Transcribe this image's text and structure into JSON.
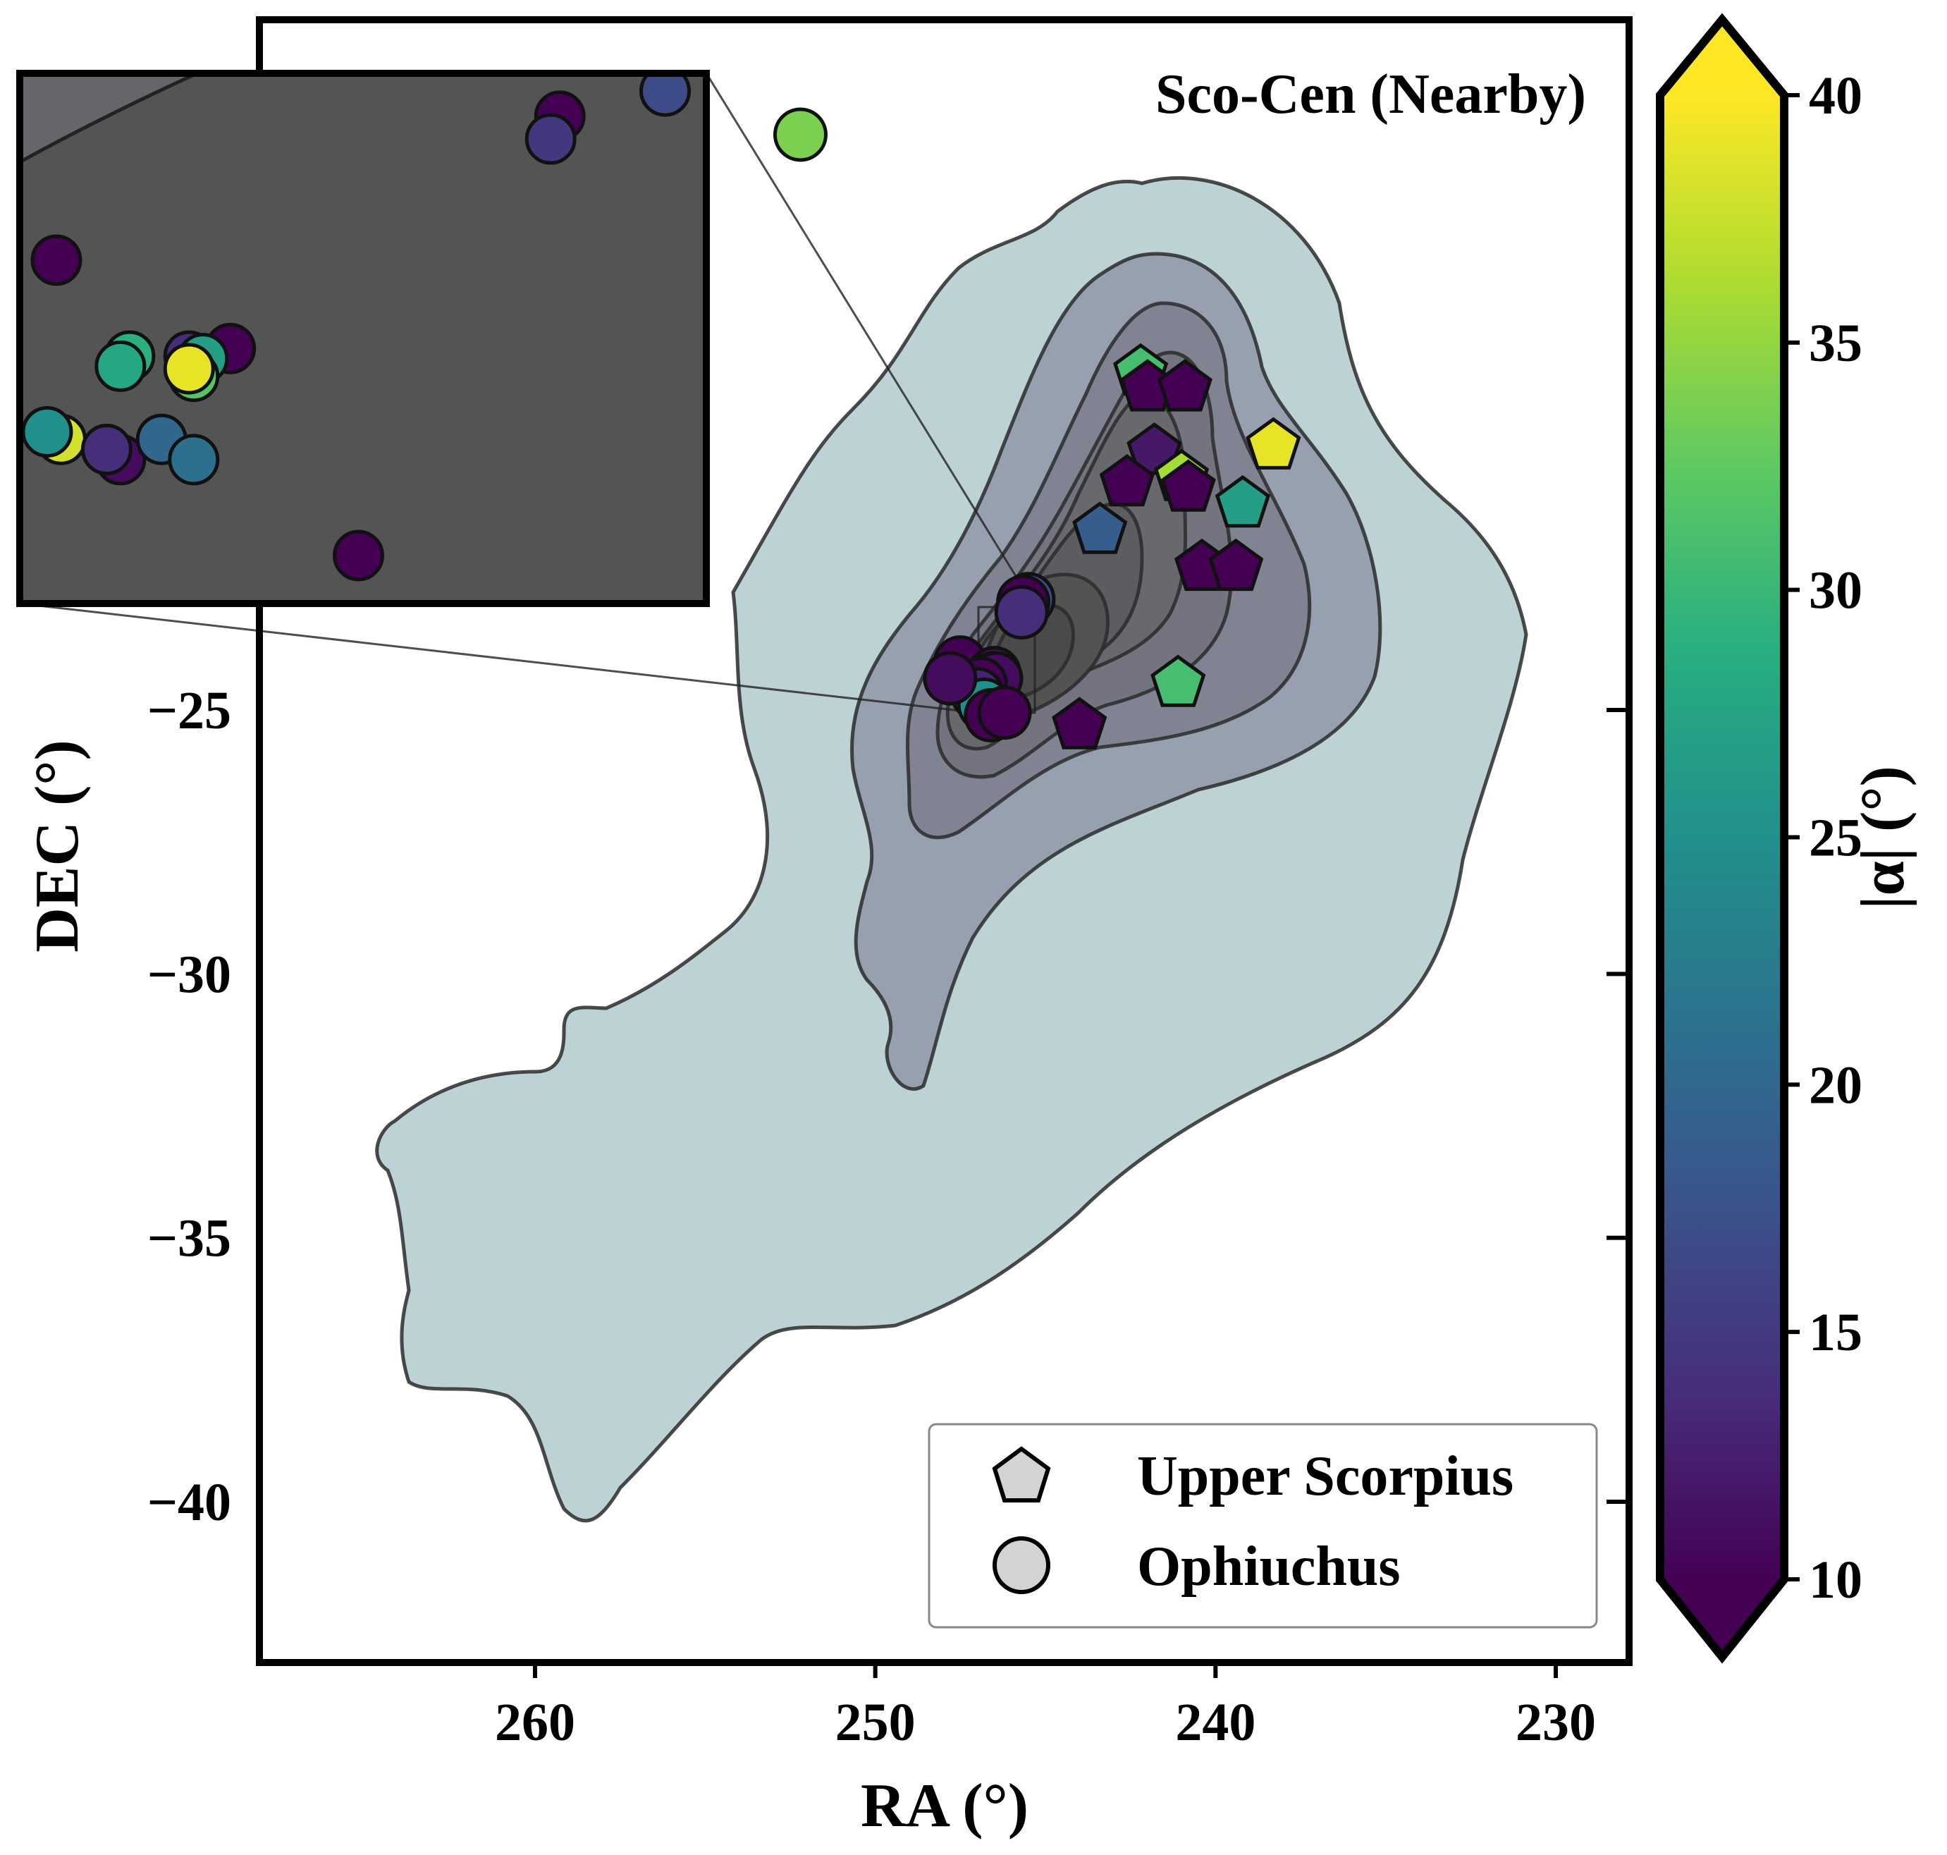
{
  "chart_data": {
    "type": "scatter",
    "title": "",
    "annotation": "Sco-Cen (Nearby)",
    "xlabel": "RA (°)",
    "ylabel": "DEC (°)",
    "xlim": [
      268,
      228
    ],
    "ylim": [
      -43,
      -12
    ],
    "x_inverted": true,
    "xticks": [
      260,
      250,
      240,
      230
    ],
    "xtick_labels": [
      "260",
      "250",
      "240",
      "230"
    ],
    "yticks": [
      -25,
      -30,
      -35,
      -40
    ],
    "ytick_labels": [
      "−25",
      "−30",
      "−35",
      "−40"
    ],
    "grid": false,
    "legend": {
      "placement": "lower-right",
      "entries": [
        {
          "label": "Upper Scorpius",
          "marker": "pentagon"
        },
        {
          "label": "Ophiuchus",
          "marker": "circle"
        }
      ]
    },
    "colorbar": {
      "label": "|α| (°)",
      "colormap": "viridis",
      "range": [
        10,
        40
      ],
      "extend": "both",
      "ticks": [
        10,
        15,
        20,
        25,
        30,
        35,
        40
      ],
      "tick_labels": [
        "10",
        "15",
        "20",
        "25",
        "30",
        "35",
        "40"
      ]
    },
    "density_contours": {
      "description": "KDE density of Sco-Cen (Nearby) members",
      "fill_colors": [
        "#bcd2d5",
        "#97a0ae",
        "#808391",
        "#737480",
        "#68686f",
        "#5d5d61",
        "#535354",
        "#4a4a4a"
      ],
      "line_color": "#2b2b2b"
    },
    "series": [
      {
        "name": "Upper Scorpius",
        "marker": "pentagon",
        "points": [
          {
            "x": 242.2,
            "y": -18.6,
            "alpha": 31
          },
          {
            "x": 242.0,
            "y": -18.9,
            "alpha": 10
          },
          {
            "x": 240.9,
            "y": -18.9,
            "alpha": 10
          },
          {
            "x": 238.3,
            "y": -20.0,
            "alpha": 39
          },
          {
            "x": 241.8,
            "y": -20.1,
            "alpha": 12
          },
          {
            "x": 242.6,
            "y": -20.7,
            "alpha": 10
          },
          {
            "x": 241.0,
            "y": -20.6,
            "alpha": 36
          },
          {
            "x": 240.8,
            "y": -20.8,
            "alpha": 10
          },
          {
            "x": 239.2,
            "y": -21.1,
            "alpha": 27
          },
          {
            "x": 243.4,
            "y": -21.6,
            "alpha": 19
          },
          {
            "x": 240.4,
            "y": -22.3,
            "alpha": 10
          },
          {
            "x": 239.4,
            "y": -22.3,
            "alpha": 10
          },
          {
            "x": 241.1,
            "y": -24.5,
            "alpha": 31
          },
          {
            "x": 244.0,
            "y": -25.3,
            "alpha": 10
          }
        ]
      },
      {
        "name": "Ophiuchus",
        "marker": "circle",
        "points": [
          {
            "x": 252.2,
            "y": -14.1,
            "alpha": 34
          },
          {
            "x": 245.5,
            "y": -22.9,
            "alpha": 17
          },
          {
            "x": 245.65,
            "y": -22.95,
            "alpha": 10
          },
          {
            "x": 245.7,
            "y": -23.15,
            "alpha": 14
          },
          {
            "x": 247.5,
            "y": -24.1,
            "alpha": 10
          },
          {
            "x": 246.5,
            "y": -24.3,
            "alpha": 11
          },
          {
            "x": 246.55,
            "y": -24.4,
            "alpha": 30
          },
          {
            "x": 246.6,
            "y": -24.45,
            "alpha": 39
          },
          {
            "x": 246.65,
            "y": -24.5,
            "alpha": 28
          },
          {
            "x": 246.7,
            "y": -24.55,
            "alpha": 26
          },
          {
            "x": 246.45,
            "y": -24.4,
            "alpha": 11
          },
          {
            "x": 246.9,
            "y": -24.5,
            "alpha": 10
          },
          {
            "x": 247.0,
            "y": -24.7,
            "alpha": 13
          },
          {
            "x": 246.8,
            "y": -24.9,
            "alpha": 25
          },
          {
            "x": 246.6,
            "y": -25.1,
            "alpha": 10
          },
          {
            "x": 246.2,
            "y": -25.05,
            "alpha": 10
          },
          {
            "x": 247.8,
            "y": -24.4,
            "alpha": 11
          }
        ]
      }
    ],
    "inset": {
      "xlim": [
        247.3,
        245.8
      ],
      "ylim": [
        -25.1,
        -23.0
      ],
      "points": [
        {
          "x": 245.89,
          "y": -23.07,
          "alpha": 17,
          "marker": "circle"
        },
        {
          "x": 246.12,
          "y": -23.17,
          "alpha": 10,
          "marker": "circle"
        },
        {
          "x": 246.14,
          "y": -23.26,
          "alpha": 15,
          "marker": "circle"
        },
        {
          "x": 247.22,
          "y": -23.74,
          "alpha": 10,
          "marker": "circle"
        },
        {
          "x": 246.84,
          "y": -24.09,
          "alpha": 10,
          "marker": "circle"
        },
        {
          "x": 246.93,
          "y": -24.12,
          "alpha": 14,
          "marker": "circle"
        },
        {
          "x": 246.9,
          "y": -24.13,
          "alpha": 27,
          "marker": "circle"
        },
        {
          "x": 246.92,
          "y": -24.2,
          "alpha": 32,
          "marker": "circle"
        },
        {
          "x": 246.93,
          "y": -24.17,
          "alpha": 39,
          "marker": "circle"
        },
        {
          "x": 247.06,
          "y": -24.12,
          "alpha": 29,
          "marker": "circle"
        },
        {
          "x": 247.08,
          "y": -24.16,
          "alpha": 28,
          "marker": "circle"
        },
        {
          "x": 247.21,
          "y": -24.45,
          "alpha": 38,
          "marker": "circle"
        },
        {
          "x": 247.24,
          "y": -24.42,
          "alpha": 25,
          "marker": "circle"
        },
        {
          "x": 247.08,
          "y": -24.53,
          "alpha": 11,
          "marker": "circle"
        },
        {
          "x": 247.11,
          "y": -24.49,
          "alpha": 14,
          "marker": "circle"
        },
        {
          "x": 246.99,
          "y": -24.45,
          "alpha": 20,
          "marker": "circle"
        },
        {
          "x": 246.92,
          "y": -24.53,
          "alpha": 21,
          "marker": "circle"
        },
        {
          "x": 246.56,
          "y": -24.91,
          "alpha": 10,
          "marker": "circle"
        }
      ]
    }
  },
  "colors": {
    "axes": "#000000",
    "marker_edge": "#111111",
    "legend_marker_fill": "#d3d3d3",
    "inset_background": "#545454"
  }
}
